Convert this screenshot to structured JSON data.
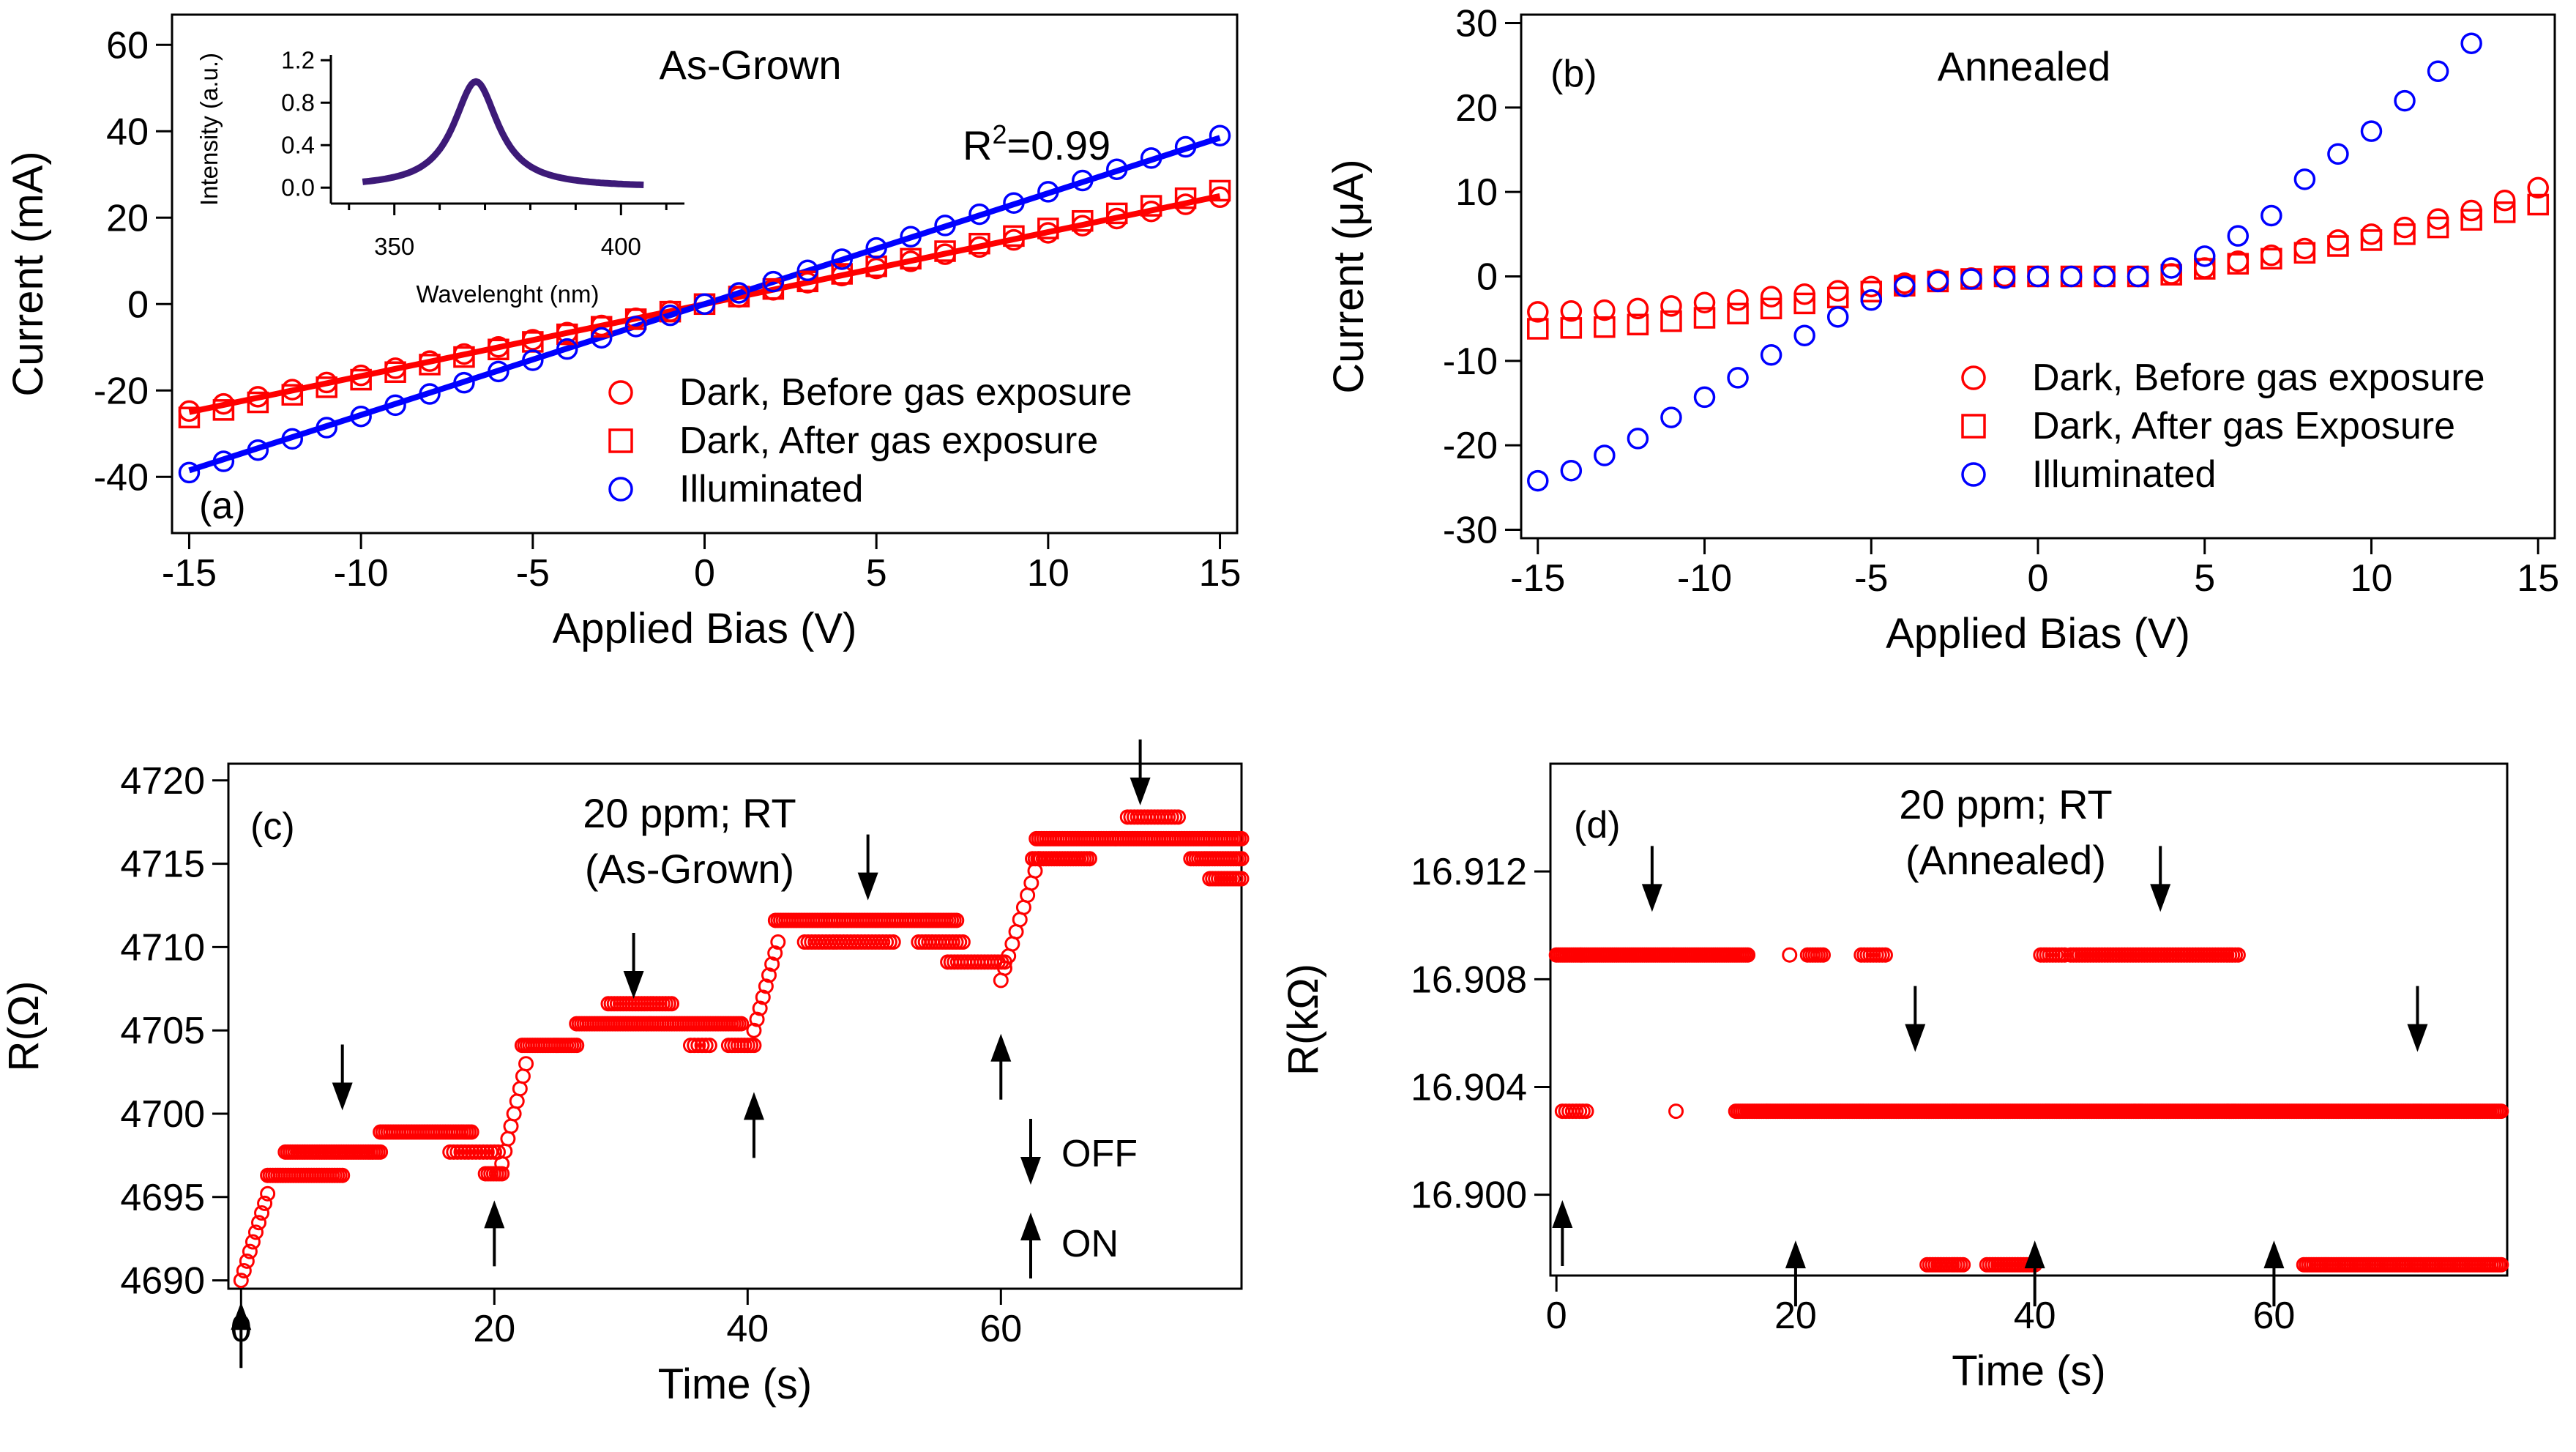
{
  "chart_data": [
    {
      "id": "a",
      "type": "scatter",
      "panel_label": "(a)",
      "title": "As-Grown",
      "annotation": {
        "text": "R",
        "sup": "2",
        "rest": "=0.99"
      },
      "xlabel": "Applied Bias (V)",
      "ylabel": "Current (mA)",
      "xlim": [
        -15.5,
        15.5
      ],
      "ylim": [
        -53,
        67
      ],
      "xticks": [
        -15,
        -10,
        -5,
        0,
        5,
        10,
        15
      ],
      "yticks": [
        -40,
        -20,
        0,
        20,
        40,
        60
      ],
      "xtick_labels": [
        "-15",
        "-10",
        "-5",
        "0",
        "5",
        "10",
        "15"
      ],
      "ytick_labels": [
        "-40",
        "-20",
        "0",
        "20",
        "40",
        "60"
      ],
      "legend_position": "bottom-center",
      "series": [
        {
          "name": "Dark, Before gas exposure",
          "marker": "circle",
          "color": "#ff0000",
          "x_start": -15,
          "x_end": 15,
          "x_step": 1,
          "slope": 1.65,
          "intercept": 0
        },
        {
          "name": "Dark, After gas exposure",
          "marker": "square",
          "color": "#ff0000",
          "x_start": -15,
          "x_end": 15,
          "x_step": 1,
          "slope": 1.75,
          "intercept": 0
        },
        {
          "name": "Illuminated",
          "marker": "circle",
          "color": "#0000ff",
          "x_start": -15,
          "x_end": 15,
          "x_step": 1,
          "slope": 2.6,
          "intercept": 0
        }
      ],
      "fit_lines": [
        {
          "name": "fit-dark",
          "color": "#ff0000",
          "x": [
            -15,
            15
          ],
          "y": [
            -25,
            25
          ]
        },
        {
          "name": "fit-illuminated",
          "color": "#0000ff",
          "x": [
            -15,
            15
          ],
          "y": [
            -38.5,
            38.5
          ]
        }
      ],
      "inset": {
        "type": "line",
        "xlabel": "Wavelenght (nm)",
        "ylabel": "Intensity (a.u.)",
        "xlim": [
          336,
          414
        ],
        "ylim": [
          -0.15,
          1.25
        ],
        "xticks": [
          350,
          400
        ],
        "xtick_labels": [
          "350",
          "400"
        ],
        "yticks": [
          0.0,
          0.4,
          0.8,
          1.2
        ],
        "ytick_labels": [
          "0.0",
          "0.4",
          "0.8",
          "1.2"
        ],
        "color": "#3d1a78",
        "peak": 368,
        "width": 6,
        "x_range": [
          343,
          405
        ]
      }
    },
    {
      "id": "b",
      "type": "scatter",
      "panel_label": "(b)",
      "title": "Annealed",
      "xlabel": "Applied Bias (V)",
      "ylabel": "Current (μA)",
      "xlim": [
        -15.5,
        15.5
      ],
      "ylim": [
        -31,
        31
      ],
      "xticks": [
        -15,
        -10,
        -5,
        0,
        5,
        10,
        15
      ],
      "yticks": [
        -30,
        -20,
        -10,
        0,
        10,
        20,
        30
      ],
      "xtick_labels": [
        "-15",
        "-10",
        "-5",
        "0",
        "5",
        "10",
        "15"
      ],
      "ytick_labels": [
        "-30",
        "-20",
        "-10",
        "0",
        "10",
        "20",
        "30"
      ],
      "legend_position": "bottom-right",
      "series": [
        {
          "name": "Dark, Before gas exposure",
          "marker": "circle",
          "color": "#ff0000",
          "x": [
            -15,
            -14,
            -13,
            -12,
            -11,
            -10,
            -9,
            -8,
            -7,
            -6,
            -5,
            -4,
            -3,
            -2,
            -1,
            0,
            1,
            2,
            3,
            4,
            5,
            6,
            7,
            8,
            9,
            10,
            11,
            12,
            13,
            14,
            15
          ],
          "y": [
            -4.2,
            -4.1,
            -4,
            -3.8,
            -3.5,
            -3.1,
            -2.8,
            -2.4,
            -2.1,
            -1.7,
            -1.2,
            -0.8,
            -0.4,
            -0.2,
            0,
            0,
            0,
            0,
            0,
            0.3,
            1,
            1.8,
            2.5,
            3.3,
            4.3,
            5,
            5.8,
            6.8,
            7.8,
            9,
            10.5
          ]
        },
        {
          "name": "Dark, After gas Exposure",
          "marker": "square",
          "color": "#ff0000",
          "x": [
            -15,
            -14,
            -13,
            -12,
            -11,
            -10,
            -9,
            -8,
            -7,
            -6,
            -5,
            -4,
            -3,
            -2,
            -1,
            0,
            1,
            2,
            3,
            4,
            5,
            6,
            7,
            8,
            9,
            10,
            11,
            12,
            13,
            14,
            15
          ],
          "y": [
            -6.2,
            -6.1,
            -6,
            -5.7,
            -5.3,
            -4.9,
            -4.4,
            -3.8,
            -3.2,
            -2.5,
            -1.8,
            -1.1,
            -0.6,
            -0.3,
            0,
            0,
            0,
            0,
            0,
            0.2,
            0.9,
            1.5,
            2.1,
            2.8,
            3.6,
            4.3,
            5,
            5.8,
            6.7,
            7.6,
            8.5
          ]
        },
        {
          "name": "Illuminated",
          "marker": "circle",
          "color": "#0000ff",
          "x": [
            -15,
            -14,
            -13,
            -12,
            -11,
            -10,
            -9,
            -8,
            -7,
            -6,
            -5,
            -4,
            -3,
            -2,
            -1,
            0,
            1,
            2,
            3,
            4,
            5,
            6,
            7,
            8,
            9,
            10,
            11,
            12,
            13
          ],
          "y": [
            -24.2,
            -23,
            -21.2,
            -19.2,
            -16.7,
            -14.3,
            -12,
            -9.3,
            -7,
            -4.8,
            -2.8,
            -1.2,
            -0.6,
            -0.3,
            -0.2,
            0,
            0,
            0,
            0,
            1,
            2.4,
            4.8,
            7.2,
            11.5,
            14.5,
            17.2,
            20.8,
            24.3,
            27.6
          ]
        }
      ]
    },
    {
      "id": "c",
      "type": "scatter",
      "panel_label": "(c)",
      "title_lines": [
        "20 ppm; RT",
        "(As-Grown)"
      ],
      "xlabel": "Time (s)",
      "ylabel": "R(Ω)",
      "xlim": [
        -1,
        79
      ],
      "ylim": [
        4689.5,
        4721
      ],
      "xticks": [
        0,
        20,
        40,
        60
      ],
      "xtick_labels": [
        "0",
        "20",
        "40",
        "60"
      ],
      "yticks": [
        4690,
        4695,
        4700,
        4705,
        4710,
        4715,
        4720
      ],
      "ytick_labels": [
        "4690",
        "4695",
        "4700",
        "4705",
        "4710",
        "4715",
        "4720"
      ],
      "color": "#ff0000",
      "segments": [
        {
          "x0": 0,
          "x1": 2.1,
          "n": 10,
          "y0": 4690,
          "y1": 4695.2
        },
        {
          "x0": 2.1,
          "x1": 8,
          "n": 30,
          "y": 4696.3
        },
        {
          "x0": 3.5,
          "x1": 11,
          "n": 40,
          "y": 4697.7
        },
        {
          "x0": 11,
          "x1": 18.2,
          "n": 36,
          "y": 4698.9
        },
        {
          "x0": 16.5,
          "x1": 20.3,
          "n": 14,
          "y": 4697.7
        },
        {
          "x0": 19.3,
          "x1": 20.6,
          "n": 7,
          "y": 4696.4
        },
        {
          "x0": 20.6,
          "x1": 22.5,
          "n": 9,
          "y0": 4697,
          "y1": 4703
        },
        {
          "x0": 22.2,
          "x1": 26.5,
          "n": 22,
          "y": 4704.1
        },
        {
          "x0": 26.5,
          "x1": 39.5,
          "n": 65,
          "y": 4705.4
        },
        {
          "x0": 29,
          "x1": 34,
          "n": 22,
          "y": 4706.6
        },
        {
          "x0": 35.5,
          "x1": 37,
          "n": 6,
          "y": 4704.1
        },
        {
          "x0": 38.5,
          "x1": 40.5,
          "n": 9,
          "y": 4704.1
        },
        {
          "x0": 40.5,
          "x1": 42.4,
          "n": 9,
          "y0": 4705,
          "y1": 4710.3
        },
        {
          "x0": 42.2,
          "x1": 56.5,
          "n": 70,
          "y": 4711.6
        },
        {
          "x0": 44.5,
          "x1": 51.5,
          "n": 26,
          "y": 4710.3
        },
        {
          "x0": 53.5,
          "x1": 57,
          "n": 14,
          "y": 4710.3
        },
        {
          "x0": 55.8,
          "x1": 60.3,
          "n": 18,
          "y": 4709.1
        },
        {
          "x0": 60,
          "x1": 63,
          "n": 11,
          "y0": 4708,
          "y1": 4715.3
        },
        {
          "x0": 62.8,
          "x1": 79,
          "n": 80,
          "y": 4716.5
        },
        {
          "x0": 62.5,
          "x1": 67,
          "n": 22,
          "y": 4715.3
        },
        {
          "x0": 70,
          "x1": 74,
          "n": 16,
          "y": 4717.8
        },
        {
          "x0": 75,
          "x1": 79,
          "n": 20,
          "y": 4715.3
        },
        {
          "x0": 76.5,
          "x1": 79,
          "n": 12,
          "y": 4714.1
        }
      ],
      "arrows_off": [
        {
          "x": 8,
          "y": 4700.2
        },
        {
          "x": 31,
          "y": 4706.9
        },
        {
          "x": 49.5,
          "y": 4712.8
        },
        {
          "x": 71,
          "y": 4718.5
        }
      ],
      "arrows_on": [
        {
          "x": 0,
          "y": 4688.7
        },
        {
          "x": 20,
          "y": 4694.8
        },
        {
          "x": 40.5,
          "y": 4701.3
        },
        {
          "x": 60,
          "y": 4704.8
        }
      ],
      "key": [
        {
          "label": "OFF",
          "direction": "down"
        },
        {
          "label": "ON",
          "direction": "up"
        }
      ]
    },
    {
      "id": "d",
      "type": "scatter",
      "panel_label": "(d)",
      "title_lines": [
        "20 ppm; RT",
        "(Annealed)"
      ],
      "xlabel": "Time (s)",
      "ylabel": "R(kΩ)",
      "xlim": [
        -0.5,
        79.5
      ],
      "ylim": [
        16.897,
        16.916
      ],
      "xticks": [
        0,
        20,
        40,
        60
      ],
      "xtick_labels": [
        "0",
        "20",
        "40",
        "60"
      ],
      "yticks": [
        16.9,
        16.904,
        16.908,
        16.912
      ],
      "ytick_labels": [
        "16.900",
        "16.904",
        "16.908",
        "16.912"
      ],
      "color": "#ff0000",
      "segments": [
        {
          "x0": 0,
          "x1": 16,
          "n": 90,
          "y": 16.9089
        },
        {
          "x0": 19.5,
          "x1": 19.5,
          "n": 1,
          "y": 16.9089
        },
        {
          "x0": 21,
          "x1": 22.3,
          "n": 7,
          "y": 16.9089
        },
        {
          "x0": 25.5,
          "x1": 27.5,
          "n": 9,
          "y": 16.9089
        },
        {
          "x0": 40.5,
          "x1": 42.5,
          "n": 9,
          "y": 16.9089
        },
        {
          "x0": 43,
          "x1": 57,
          "n": 60,
          "y": 16.9089
        },
        {
          "x0": 0.5,
          "x1": 2.5,
          "n": 8,
          "y": 16.9031
        },
        {
          "x0": 10,
          "x1": 10,
          "n": 1,
          "y": 16.9031
        },
        {
          "x0": 15,
          "x1": 79,
          "n": 330,
          "y": 16.9031
        },
        {
          "x0": 31,
          "x1": 34,
          "n": 14,
          "y": 16.8974
        },
        {
          "x0": 36,
          "x1": 40,
          "n": 18,
          "y": 16.8974
        },
        {
          "x0": 62.5,
          "x1": 79,
          "n": 80,
          "y": 16.8974
        }
      ],
      "arrows_off": [
        {
          "x": 8,
          "y": 16.9105
        },
        {
          "x": 30,
          "y": 16.9053
        },
        {
          "x": 50.5,
          "y": 16.9105
        },
        {
          "x": 72,
          "y": 16.9053
        }
      ],
      "arrows_on": [
        {
          "x": 0.5,
          "y": 16.8998
        },
        {
          "x": 20,
          "y": 16.8983
        },
        {
          "x": 40,
          "y": 16.8983
        },
        {
          "x": 60,
          "y": 16.8983
        }
      ]
    }
  ]
}
